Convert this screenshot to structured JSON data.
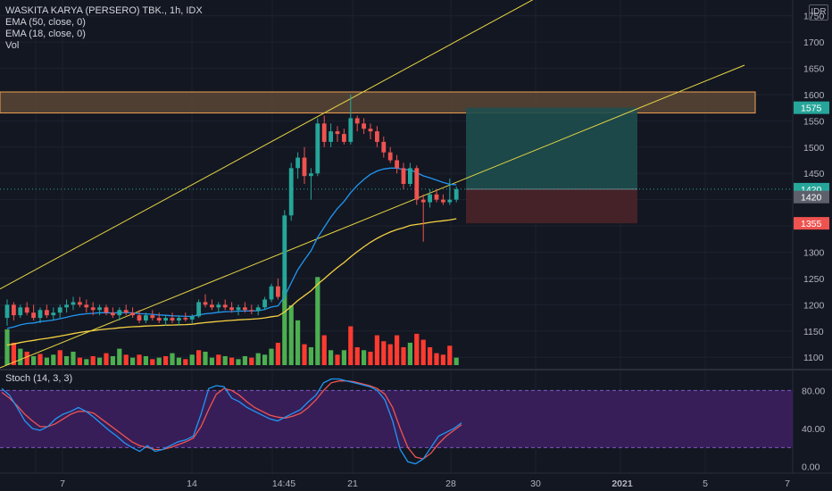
{
  "header": {
    "title": "WASKITA KARYA (PERSERO) TBK., 1h, IDX",
    "indicator_1": "EMA (50, close, 0)",
    "indicator_2": "EMA (18, close, 0)",
    "indicator_3": "Vol",
    "currency": "IDR"
  },
  "oscillator": {
    "label": "Stoch (14, 3, 3)"
  },
  "colors": {
    "background": "#131722",
    "up": "#26a69a",
    "down": "#ef5350",
    "vol_up": "#4caf50",
    "vol_down": "#ff3b30",
    "ema50": "#f5d142",
    "ema18": "#2196f3",
    "trendline": "#e9d843",
    "resistance_zone_fill": "#5a4636",
    "resistance_zone_border": "#f0a050",
    "target_zone": "#1e4e4e",
    "stop_zone": "#4a2329",
    "stoch_band": "#3c1f5e",
    "stoch_k": "#2196f3",
    "stoch_d": "#ef5350"
  },
  "price_axis": {
    "ticks": [
      "1750",
      "1700",
      "1650",
      "1600",
      "1550",
      "1500",
      "1450",
      "1400",
      "1350",
      "1300",
      "1250",
      "1200",
      "1150",
      "1100"
    ],
    "tags": [
      {
        "value": 1575,
        "label": "1575",
        "color": "#26a69a"
      },
      {
        "value": 1420,
        "label": "1420",
        "color": "#26a69a"
      },
      {
        "value": 1405,
        "label": "1420",
        "color": "#5d606b"
      },
      {
        "value": 1355,
        "label": "1355",
        "color": "#ef5350"
      }
    ]
  },
  "stoch_axis": {
    "ticks": [
      "80.00",
      "40.00",
      "0.00"
    ]
  },
  "time_axis": {
    "labels": [
      {
        "text": "7",
        "bold": false
      },
      {
        "text": "14",
        "bold": false
      },
      {
        "text": "14:45",
        "bold": false
      },
      {
        "text": "21",
        "bold": false
      },
      {
        "text": "28",
        "bold": false
      },
      {
        "text": "30",
        "bold": false
      },
      {
        "text": "2021",
        "bold": true
      },
      {
        "text": "5",
        "bold": false
      },
      {
        "text": "7",
        "bold": false
      }
    ]
  },
  "chart_data": {
    "type": "candlestick",
    "symbol": "WASKITA KARYA (PERSERO) TBK.",
    "interval": "1h",
    "exchange": "IDX",
    "ylim": [
      1080,
      1780
    ],
    "current_price": 1420,
    "resistance_zone": [
      1565,
      1605
    ],
    "position": {
      "target": 1575,
      "entry": 1420,
      "stop": 1355
    },
    "candles": [
      [
        1175,
        1210,
        1160,
        1200
      ],
      [
        1200,
        1205,
        1170,
        1180
      ],
      [
        1180,
        1200,
        1175,
        1195
      ],
      [
        1195,
        1205,
        1180,
        1185
      ],
      [
        1185,
        1200,
        1170,
        1175
      ],
      [
        1175,
        1195,
        1165,
        1190
      ],
      [
        1190,
        1200,
        1175,
        1180
      ],
      [
        1180,
        1195,
        1170,
        1185
      ],
      [
        1185,
        1200,
        1175,
        1195
      ],
      [
        1195,
        1210,
        1185,
        1200
      ],
      [
        1200,
        1215,
        1190,
        1205
      ],
      [
        1205,
        1215,
        1195,
        1200
      ],
      [
        1200,
        1210,
        1185,
        1195
      ],
      [
        1195,
        1205,
        1180,
        1190
      ],
      [
        1190,
        1200,
        1180,
        1195
      ],
      [
        1195,
        1200,
        1180,
        1185
      ],
      [
        1185,
        1195,
        1175,
        1180
      ],
      [
        1180,
        1195,
        1170,
        1190
      ],
      [
        1190,
        1200,
        1180,
        1185
      ],
      [
        1185,
        1195,
        1175,
        1180
      ],
      [
        1180,
        1190,
        1165,
        1170
      ],
      [
        1170,
        1185,
        1165,
        1180
      ],
      [
        1180,
        1190,
        1170,
        1175
      ],
      [
        1175,
        1185,
        1165,
        1170
      ],
      [
        1170,
        1180,
        1160,
        1175
      ],
      [
        1175,
        1185,
        1165,
        1170
      ],
      [
        1170,
        1180,
        1160,
        1175
      ],
      [
        1175,
        1185,
        1168,
        1172
      ],
      [
        1172,
        1182,
        1165,
        1178
      ],
      [
        1178,
        1210,
        1175,
        1205
      ],
      [
        1205,
        1220,
        1195,
        1200
      ],
      [
        1200,
        1210,
        1190,
        1195
      ],
      [
        1195,
        1205,
        1185,
        1200
      ],
      [
        1200,
        1210,
        1190,
        1195
      ],
      [
        1195,
        1205,
        1185,
        1190
      ],
      [
        1190,
        1200,
        1180,
        1195
      ],
      [
        1195,
        1205,
        1185,
        1190
      ],
      [
        1190,
        1200,
        1182,
        1188
      ],
      [
        1188,
        1200,
        1180,
        1195
      ],
      [
        1195,
        1215,
        1190,
        1210
      ],
      [
        1210,
        1240,
        1205,
        1235
      ],
      [
        1235,
        1250,
        1210,
        1215
      ],
      [
        1215,
        1380,
        1210,
        1370
      ],
      [
        1370,
        1470,
        1360,
        1460
      ],
      [
        1460,
        1490,
        1440,
        1480
      ],
      [
        1480,
        1500,
        1430,
        1445
      ],
      [
        1445,
        1460,
        1400,
        1450
      ],
      [
        1450,
        1555,
        1445,
        1545
      ],
      [
        1545,
        1560,
        1500,
        1510
      ],
      [
        1510,
        1545,
        1500,
        1530
      ],
      [
        1530,
        1540,
        1510,
        1525
      ],
      [
        1525,
        1535,
        1505,
        1510
      ],
      [
        1510,
        1600,
        1505,
        1555
      ],
      [
        1555,
        1560,
        1530,
        1545
      ],
      [
        1545,
        1555,
        1525,
        1535
      ],
      [
        1535,
        1545,
        1515,
        1530
      ],
      [
        1530,
        1540,
        1500,
        1510
      ],
      [
        1510,
        1520,
        1480,
        1490
      ],
      [
        1490,
        1500,
        1470,
        1475
      ],
      [
        1475,
        1485,
        1450,
        1460
      ],
      [
        1460,
        1470,
        1420,
        1430
      ],
      [
        1430,
        1470,
        1425,
        1460
      ],
      [
        1460,
        1465,
        1390,
        1400
      ],
      [
        1400,
        1410,
        1320,
        1395
      ],
      [
        1395,
        1420,
        1385,
        1410
      ],
      [
        1410,
        1420,
        1395,
        1400
      ],
      [
        1400,
        1410,
        1390,
        1395
      ],
      [
        1395,
        1440,
        1390,
        1400
      ],
      [
        1400,
        1425,
        1395,
        1420
      ]
    ],
    "volume": [
      [
        48,
        "u"
      ],
      [
        30,
        "d"
      ],
      [
        22,
        "u"
      ],
      [
        18,
        "d"
      ],
      [
        12,
        "u"
      ],
      [
        15,
        "d"
      ],
      [
        10,
        "u"
      ],
      [
        14,
        "u"
      ],
      [
        20,
        "d"
      ],
      [
        12,
        "u"
      ],
      [
        18,
        "u"
      ],
      [
        10,
        "d"
      ],
      [
        8,
        "u"
      ],
      [
        12,
        "d"
      ],
      [
        10,
        "u"
      ],
      [
        16,
        "d"
      ],
      [
        12,
        "u"
      ],
      [
        22,
        "u"
      ],
      [
        14,
        "d"
      ],
      [
        10,
        "u"
      ],
      [
        14,
        "d"
      ],
      [
        12,
        "u"
      ],
      [
        8,
        "d"
      ],
      [
        10,
        "u"
      ],
      [
        12,
        "d"
      ],
      [
        16,
        "u"
      ],
      [
        10,
        "u"
      ],
      [
        8,
        "d"
      ],
      [
        14,
        "u"
      ],
      [
        20,
        "d"
      ],
      [
        18,
        "u"
      ],
      [
        10,
        "u"
      ],
      [
        14,
        "d"
      ],
      [
        12,
        "u"
      ],
      [
        10,
        "d"
      ],
      [
        8,
        "u"
      ],
      [
        12,
        "u"
      ],
      [
        10,
        "d"
      ],
      [
        16,
        "u"
      ],
      [
        14,
        "u"
      ],
      [
        22,
        "u"
      ],
      [
        30,
        "d"
      ],
      [
        100,
        "u"
      ],
      [
        80,
        "u"
      ],
      [
        60,
        "u"
      ],
      [
        28,
        "d"
      ],
      [
        24,
        "u"
      ],
      [
        118,
        "u"
      ],
      [
        40,
        "d"
      ],
      [
        20,
        "u"
      ],
      [
        14,
        "d"
      ],
      [
        20,
        "u"
      ],
      [
        52,
        "d"
      ],
      [
        24,
        "d"
      ],
      [
        20,
        "u"
      ],
      [
        18,
        "d"
      ],
      [
        40,
        "d"
      ],
      [
        32,
        "d"
      ],
      [
        28,
        "d"
      ],
      [
        40,
        "d"
      ],
      [
        24,
        "d"
      ],
      [
        30,
        "u"
      ],
      [
        42,
        "d"
      ],
      [
        34,
        "d"
      ],
      [
        24,
        "d"
      ],
      [
        16,
        "d"
      ],
      [
        14,
        "d"
      ],
      [
        26,
        "d"
      ],
      [
        10,
        "u"
      ]
    ],
    "stoch_ylim": [
      -5,
      100
    ],
    "stoch_k": [
      82,
      75,
      62,
      48,
      40,
      38,
      42,
      50,
      55,
      58,
      62,
      58,
      52,
      45,
      38,
      32,
      25,
      20,
      16,
      22,
      16,
      18,
      22,
      26,
      28,
      32,
      55,
      82,
      85,
      84,
      72,
      68,
      62,
      58,
      54,
      50,
      48,
      52,
      56,
      60,
      68,
      75,
      88,
      92,
      92,
      90,
      88,
      86,
      84,
      80,
      70,
      48,
      18,
      5,
      3,
      8,
      20,
      32,
      36,
      40,
      46
    ],
    "stoch_d": [
      78,
      72,
      64,
      55,
      48,
      42,
      42,
      45,
      50,
      55,
      58,
      58,
      56,
      50,
      44,
      38,
      32,
      26,
      22,
      20,
      18,
      18,
      20,
      23,
      26,
      30,
      42,
      60,
      76,
      82,
      80,
      75,
      68,
      62,
      58,
      54,
      52,
      51,
      53,
      56,
      62,
      70,
      80,
      88,
      90,
      90,
      89,
      87,
      85,
      82,
      76,
      62,
      40,
      20,
      10,
      8,
      14,
      24,
      32,
      38,
      44
    ]
  }
}
